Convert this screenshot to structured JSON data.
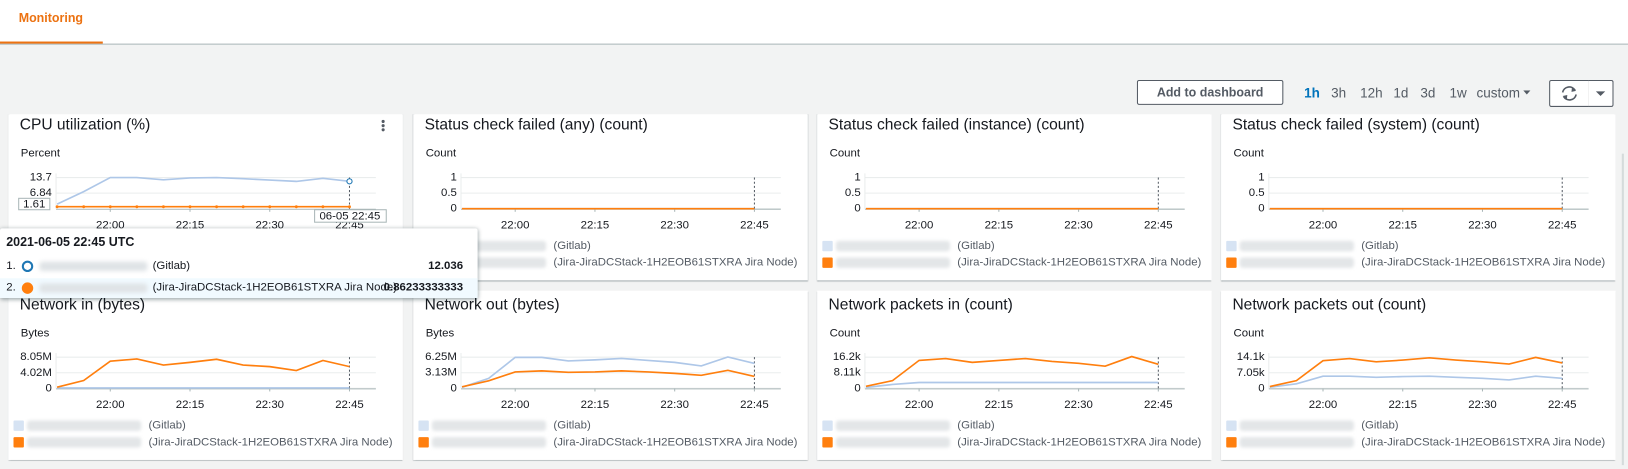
{
  "tab": "Monitoring",
  "toolbar": {
    "add_button": "Add to dashboard",
    "ranges": [
      "1h",
      "3h",
      "12h",
      "1d",
      "3d",
      "1w",
      "custom"
    ],
    "selected": 0
  },
  "widgets": [
    {
      "type": "line",
      "title": "CPU utilization (%)",
      "unit": "Percent",
      "ylim": [
        0,
        13.7
      ],
      "yticks": [
        6.84,
        13.7
      ],
      "xticks": [
        "22:00",
        "22:15",
        "22:30",
        "22:45"
      ],
      "series": [
        {
          "name": "(Gitlab)",
          "color": "#aec7e8",
          "values": [
            2.0,
            7.5,
            13.7,
            13.7,
            12.7,
            13.5,
            13.7,
            13.2,
            12.6,
            12.0,
            13.4,
            12.036
          ]
        },
        {
          "name": "(Jira-JiraDCStack-1H2EOB61STXRA Jira Node)",
          "color": "#ff7f0e",
          "values": [
            0.86,
            0.86,
            0.86,
            0.86,
            0.86,
            0.86,
            0.86,
            0.86,
            0.86,
            0.86,
            0.86,
            0.86233333333
          ]
        }
      ]
    },
    {
      "type": "line",
      "title": "Status check failed (any) (count)",
      "unit": "Count",
      "ylim": [
        0,
        1
      ],
      "yticks": [
        0,
        0.5,
        1
      ],
      "xticks": [
        "22:00",
        "22:15",
        "22:30",
        "22:45"
      ],
      "series": [
        {
          "name": "(Gitlab)",
          "color": "#aec7e8",
          "values": [
            0,
            0,
            0,
            0,
            0,
            0,
            0,
            0,
            0,
            0,
            0,
            0
          ]
        },
        {
          "name": "(Jira-JiraDCStack-1H2EOB61STXRA Jira Node)",
          "color": "#ff7f0e",
          "values": [
            0,
            0,
            0,
            0,
            0,
            0,
            0,
            0,
            0,
            0,
            0,
            0
          ]
        }
      ]
    },
    {
      "type": "line",
      "title": "Status check failed (instance) (count)",
      "unit": "Count",
      "ylim": [
        0,
        1
      ],
      "yticks": [
        0,
        0.5,
        1
      ],
      "xticks": [
        "22:00",
        "22:15",
        "22:30",
        "22:45"
      ],
      "series": [
        {
          "name": "(Gitlab)",
          "color": "#aec7e8",
          "values": [
            0,
            0,
            0,
            0,
            0,
            0,
            0,
            0,
            0,
            0,
            0,
            0
          ]
        },
        {
          "name": "(Jira-JiraDCStack-1H2EOB61STXRA Jira Node)",
          "color": "#ff7f0e",
          "values": [
            0,
            0,
            0,
            0,
            0,
            0,
            0,
            0,
            0,
            0,
            0,
            0
          ]
        }
      ]
    },
    {
      "type": "line",
      "title": "Status check failed (system) (count)",
      "unit": "Count",
      "ylim": [
        0,
        1
      ],
      "yticks": [
        0,
        0.5,
        1
      ],
      "xticks": [
        "22:00",
        "22:15",
        "22:30",
        "22:45"
      ],
      "series": [
        {
          "name": "(Gitlab)",
          "color": "#aec7e8",
          "values": [
            0,
            0,
            0,
            0,
            0,
            0,
            0,
            0,
            0,
            0,
            0,
            0
          ]
        },
        {
          "name": "(Jira-JiraDCStack-1H2EOB61STXRA Jira Node)",
          "color": "#ff7f0e",
          "values": [
            0,
            0,
            0,
            0,
            0,
            0,
            0,
            0,
            0,
            0,
            0,
            0
          ]
        }
      ]
    },
    {
      "type": "line",
      "title": "Network in (bytes)",
      "unit": "Bytes",
      "ylim": [
        0,
        8050000
      ],
      "yticks": [
        0,
        {
          "value": 4020000,
          "label": "4.02M"
        },
        {
          "value": 8050000,
          "label": "8.05M"
        }
      ],
      "xticks": [
        "22:00",
        "22:15",
        "22:30",
        "22:45"
      ],
      "series": [
        {
          "name": "(Gitlab)",
          "color": "#aec7e8",
          "values": [
            100000,
            100000,
            100000,
            100000,
            100000,
            100000,
            100000,
            100000,
            100000,
            100000,
            100000,
            100000
          ]
        },
        {
          "name": "(Jira-JiraDCStack-1H2EOB61STXRA Jira Node)",
          "color": "#ff7f0e",
          "values": [
            300000,
            2000000,
            7000000,
            7600000,
            6000000,
            6700000,
            7500000,
            6000000,
            5600000,
            4600000,
            7200000,
            5600000
          ]
        }
      ]
    },
    {
      "type": "line",
      "title": "Network out (bytes)",
      "unit": "Bytes",
      "ylim": [
        0,
        6250000
      ],
      "yticks": [
        0,
        {
          "value": 3130000,
          "label": "3.13M"
        },
        {
          "value": 6250000,
          "label": "6.25M"
        }
      ],
      "xticks": [
        "22:00",
        "22:15",
        "22:30",
        "22:45"
      ],
      "series": [
        {
          "name": "(Gitlab)",
          "color": "#aec7e8",
          "values": [
            200000,
            2000000,
            6200000,
            6200000,
            5500000,
            5700000,
            6000000,
            5600000,
            5200000,
            4500000,
            6300000,
            5000000
          ]
        },
        {
          "name": "(Jira-JiraDCStack-1H2EOB61STXRA Jira Node)",
          "color": "#ff7f0e",
          "values": [
            300000,
            1500000,
            3300000,
            3500000,
            3200000,
            3300000,
            3500000,
            3300000,
            3000000,
            2600000,
            3600000,
            2400000
          ]
        }
      ]
    },
    {
      "type": "line",
      "title": "Network packets in (count)",
      "unit": "Count",
      "ylim": [
        0,
        16200
      ],
      "yticks": [
        0,
        {
          "value": 8110,
          "label": "8.11k"
        },
        {
          "value": 16200,
          "label": "16.2k"
        }
      ],
      "xticks": [
        "22:00",
        "22:15",
        "22:30",
        "22:45"
      ],
      "series": [
        {
          "name": "(Gitlab)",
          "color": "#aec7e8",
          "values": [
            500,
            2000,
            3000,
            3000,
            3000,
            3000,
            3000,
            3000,
            3000,
            3000,
            3000,
            3000
          ]
        },
        {
          "name": "(Jira-JiraDCStack-1H2EOB61STXRA Jira Node)",
          "color": "#ff7f0e",
          "values": [
            1000,
            4000,
            14500,
            15500,
            13500,
            14500,
            15500,
            14000,
            13000,
            11500,
            16500,
            12500
          ]
        }
      ]
    },
    {
      "type": "line",
      "title": "Network packets out (count)",
      "unit": "Count",
      "ylim": [
        0,
        14100
      ],
      "yticks": [
        0,
        {
          "value": 7050,
          "label": "7.05k"
        },
        {
          "value": 14100,
          "label": "14.1k"
        }
      ],
      "xticks": [
        "22:00",
        "22:15",
        "22:30",
        "22:45"
      ],
      "series": [
        {
          "name": "(Gitlab)",
          "color": "#aec7e8",
          "values": [
            500,
            2000,
            5500,
            5500,
            5000,
            5300,
            5500,
            5000,
            4500,
            3800,
            5500,
            4500
          ]
        },
        {
          "name": "(Jira-JiraDCStack-1H2EOB61STXRA Jira Node)",
          "color": "#ff7f0e",
          "values": [
            800,
            3500,
            12500,
            13500,
            12000,
            12800,
            13800,
            12800,
            12000,
            11000,
            14000,
            11500
          ]
        }
      ]
    }
  ],
  "tooltip": {
    "time": "2021-06-05 22:45 UTC",
    "x_label": "06-05 22:45",
    "y_label": "1.61",
    "rows": [
      {
        "index": "1.",
        "name": "(Gitlab)",
        "value": 12.036
      },
      {
        "index": "2.",
        "name": "(Jira-JiraDCStack-1H2EOB61STXRA Jira Node)",
        "value": 0.86233333333
      }
    ]
  }
}
